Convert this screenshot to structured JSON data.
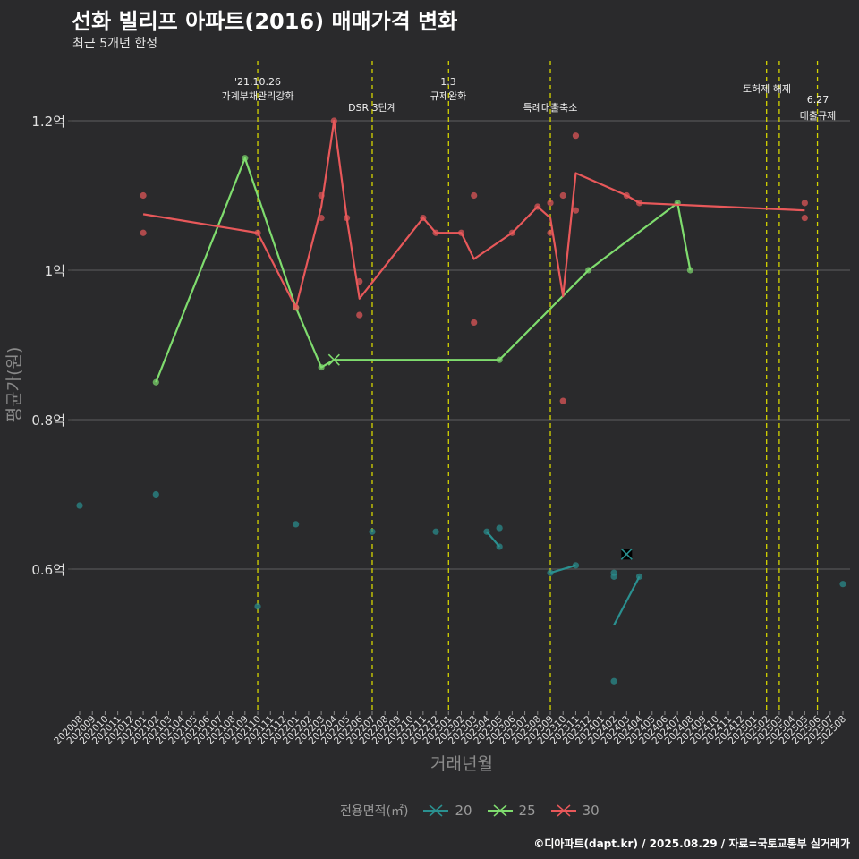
{
  "title": "선화 빌리프 아파트(2016) 매매가격 변화",
  "subtitle": "최근 5개년 한정",
  "caption": "©디아파트(dapt.kr) / 2025.08.29 / 자료=국토교통부 실거래가",
  "colors": {
    "bg": "#2a2a2c",
    "grid": "#555555",
    "vline": "#d4d400",
    "s20": "#2a9090",
    "s25": "#7fdc6e",
    "s30": "#e8585a"
  },
  "chart_data": {
    "type": "line",
    "title": "선화 빌리프 아파트(2016) 매매가격 변화",
    "subtitle": "최근 5개년 한정",
    "xlabel": "거래년월",
    "ylabel": "평균가(원)",
    "ylim": [
      0.42,
      1.28
    ],
    "yticks": [
      0.6,
      0.8,
      1.0,
      1.2
    ],
    "ytick_labels": [
      "0.6억",
      "0.8억",
      "1억",
      "1.2억"
    ],
    "grid": true,
    "legend": {
      "title": "전용면적(㎡)",
      "position": "bottom",
      "entries": [
        "20",
        "25",
        "30"
      ]
    },
    "x_categories": [
      "202008",
      "202009",
      "202010",
      "202011",
      "202012",
      "202101",
      "202102",
      "202103",
      "202104",
      "202105",
      "202106",
      "202107",
      "202108",
      "202109",
      "202110",
      "202111",
      "202112",
      "202201",
      "202202",
      "202203",
      "202204",
      "202205",
      "202206",
      "202207",
      "202208",
      "202209",
      "202210",
      "202211",
      "202212",
      "202301",
      "202302",
      "202303",
      "202304",
      "202305",
      "202306",
      "202307",
      "202308",
      "202309",
      "202310",
      "202311",
      "202312",
      "202401",
      "202402",
      "202403",
      "202404",
      "202405",
      "202406",
      "202407",
      "202408",
      "202409",
      "202410",
      "202411",
      "202412",
      "202501",
      "202502",
      "202503",
      "202504",
      "202505",
      "202506",
      "202507",
      "202508"
    ],
    "events": [
      {
        "x": "202110",
        "label1": "'21.10.26",
        "label2": "가계부채관리강화"
      },
      {
        "x": "202207",
        "label1": "",
        "label2": "DSR 3단계"
      },
      {
        "x": "202301",
        "label1": "1.3",
        "label2": "규제완화"
      },
      {
        "x": "202309",
        "label1": "",
        "label2": "특례대출축소"
      },
      {
        "x": "202502",
        "label1": "",
        "label2": "토허제 해제"
      },
      {
        "x": "202503",
        "label1": "",
        "label2": ""
      },
      {
        "x": "202506",
        "label1": "6.27",
        "label2": "대출규제"
      }
    ],
    "series": [
      {
        "name": "20",
        "line": [
          {
            "x": "202304",
            "y": 0.65
          },
          {
            "x": "202305",
            "y": 0.63
          }
        ],
        "line2": [
          {
            "x": "202309",
            "y": 0.595
          },
          {
            "x": "202311",
            "y": 0.605
          }
        ],
        "line3": [
          {
            "x": "202402",
            "y": 0.525
          },
          {
            "x": "202404",
            "y": 0.59
          }
        ],
        "points": [
          {
            "x": "202008",
            "y": 0.685
          },
          {
            "x": "202102",
            "y": 0.7
          },
          {
            "x": "202110",
            "y": 0.55
          },
          {
            "x": "202201",
            "y": 0.66
          },
          {
            "x": "202207",
            "y": 0.65
          },
          {
            "x": "202212",
            "y": 0.65
          },
          {
            "x": "202304",
            "y": 0.65
          },
          {
            "x": "202305",
            "y": 0.63
          },
          {
            "x": "202305",
            "y": 0.655
          },
          {
            "x": "202309",
            "y": 0.595
          },
          {
            "x": "202311",
            "y": 0.605
          },
          {
            "x": "202402",
            "y": 0.595
          },
          {
            "x": "202402",
            "y": 0.59
          },
          {
            "x": "202402",
            "y": 0.45
          },
          {
            "x": "202404",
            "y": 0.59
          },
          {
            "x": "202508",
            "y": 0.58
          }
        ],
        "marker": {
          "x": "202403",
          "y": 0.62
        }
      },
      {
        "name": "25",
        "line": [
          {
            "x": "202102",
            "y": 0.85
          },
          {
            "x": "202109",
            "y": 1.15
          },
          {
            "x": "202201",
            "y": 0.95
          },
          {
            "x": "202203",
            "y": 0.87
          },
          {
            "x": "202204",
            "y": 0.88
          },
          {
            "x": "202305",
            "y": 0.88
          },
          {
            "x": "202312",
            "y": 1.0
          },
          {
            "x": "202407",
            "y": 1.09
          },
          {
            "x": "202408",
            "y": 1.0
          }
        ],
        "points": [
          {
            "x": "202102",
            "y": 0.85
          },
          {
            "x": "202109",
            "y": 1.15
          },
          {
            "x": "202201",
            "y": 0.95
          },
          {
            "x": "202203",
            "y": 0.87
          },
          {
            "x": "202305",
            "y": 0.88
          },
          {
            "x": "202312",
            "y": 1.0
          },
          {
            "x": "202407",
            "y": 1.09
          },
          {
            "x": "202408",
            "y": 1.0
          }
        ],
        "marker": {
          "x": "202204",
          "y": 0.88
        }
      },
      {
        "name": "30",
        "line": [
          {
            "x": "202101",
            "y": 1.075
          },
          {
            "x": "202110",
            "y": 1.05
          },
          {
            "x": "202201",
            "y": 0.95
          },
          {
            "x": "202203",
            "y": 1.085
          },
          {
            "x": "202204",
            "y": 1.2
          },
          {
            "x": "202205",
            "y": 1.07
          },
          {
            "x": "202206",
            "y": 0.962
          },
          {
            "x": "202211",
            "y": 1.07
          },
          {
            "x": "202212",
            "y": 1.05
          },
          {
            "x": "202302",
            "y": 1.05
          },
          {
            "x": "202303",
            "y": 1.015
          },
          {
            "x": "202306",
            "y": 1.05
          },
          {
            "x": "202308",
            "y": 1.085
          },
          {
            "x": "202309",
            "y": 1.07
          },
          {
            "x": "202310",
            "y": 0.965
          },
          {
            "x": "202311",
            "y": 1.13
          },
          {
            "x": "202403",
            "y": 1.1
          },
          {
            "x": "202404",
            "y": 1.09
          },
          {
            "x": "202505",
            "y": 1.08
          }
        ],
        "points": [
          {
            "x": "202101",
            "y": 1.1
          },
          {
            "x": "202101",
            "y": 1.05
          },
          {
            "x": "202110",
            "y": 1.05
          },
          {
            "x": "202201",
            "y": 0.95
          },
          {
            "x": "202203",
            "y": 1.1
          },
          {
            "x": "202203",
            "y": 1.07
          },
          {
            "x": "202204",
            "y": 1.2
          },
          {
            "x": "202205",
            "y": 1.07
          },
          {
            "x": "202206",
            "y": 0.985
          },
          {
            "x": "202206",
            "y": 0.94
          },
          {
            "x": "202211",
            "y": 1.07
          },
          {
            "x": "202212",
            "y": 1.05
          },
          {
            "x": "202302",
            "y": 1.05
          },
          {
            "x": "202303",
            "y": 1.1
          },
          {
            "x": "202303",
            "y": 0.93
          },
          {
            "x": "202306",
            "y": 1.05
          },
          {
            "x": "202308",
            "y": 1.085
          },
          {
            "x": "202309",
            "y": 1.09
          },
          {
            "x": "202309",
            "y": 1.05
          },
          {
            "x": "202310",
            "y": 1.1
          },
          {
            "x": "202310",
            "y": 0.825
          },
          {
            "x": "202311",
            "y": 1.18
          },
          {
            "x": "202311",
            "y": 1.08
          },
          {
            "x": "202403",
            "y": 1.1
          },
          {
            "x": "202404",
            "y": 1.09
          },
          {
            "x": "202505",
            "y": 1.09
          },
          {
            "x": "202505",
            "y": 1.07
          }
        ]
      }
    ]
  }
}
